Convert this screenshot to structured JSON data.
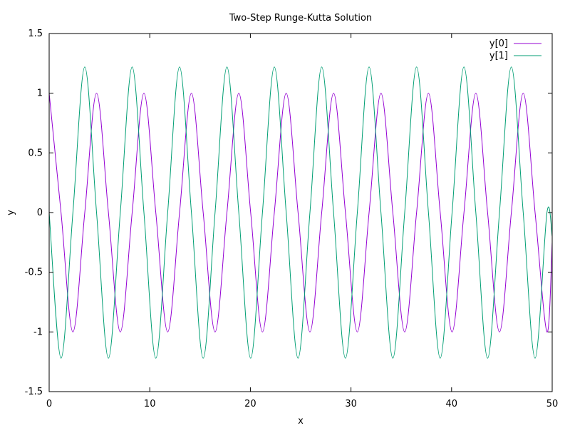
{
  "chart_data": {
    "type": "line",
    "title": "Two-Step Runge-Kutta Solution",
    "xlabel": "x",
    "ylabel": "y",
    "xlim": [
      0,
      50
    ],
    "ylim": [
      -1.5,
      1.5
    ],
    "x_ticks": [
      "0",
      "10",
      "20",
      "30",
      "40",
      "50"
    ],
    "y_ticks": [
      "1.5",
      "1",
      "0.5",
      "0",
      "-0.5",
      "-1",
      "-1.5"
    ],
    "grid": false,
    "legend_position": "top-right",
    "series": [
      {
        "name": "y[0]",
        "color": "#9400d3",
        "x": [
          0,
          1.18,
          2.36,
          3.54,
          4.71,
          5.89,
          7.07,
          8.25,
          9.42,
          10.6,
          11.78,
          12.96,
          14.14,
          15.31,
          16.49,
          17.67,
          18.85,
          20.03,
          21.2,
          22.38,
          23.56,
          24.74,
          25.92,
          27.09,
          28.27,
          29.45,
          30.63,
          31.8,
          32.98,
          34.16,
          35.34,
          36.52,
          37.7,
          38.87,
          40.05,
          41.23,
          42.41,
          43.58,
          44.76,
          45.94,
          47.12,
          48.3,
          49.48,
          50
        ],
        "y": [
          1.0,
          0.0,
          -1.0,
          0.0,
          1.0,
          0.0,
          -1.0,
          0.0,
          1.0,
          0.0,
          -1.0,
          0.0,
          1.0,
          0.0,
          -1.0,
          0.0,
          1.0,
          0.0,
          -1.0,
          0.0,
          1.0,
          0.0,
          -1.0,
          0.0,
          1.0,
          0.0,
          -1.0,
          0.0,
          1.0,
          0.0,
          -1.0,
          0.0,
          1.0,
          0.0,
          -1.0,
          0.0,
          1.0,
          0.0,
          -1.0,
          0.0,
          1.0,
          0.0,
          -1.0,
          -0.25
        ]
      },
      {
        "name": "y[1]",
        "color": "#009e73",
        "x": [
          0,
          1.18,
          2.36,
          3.54,
          4.71,
          5.89,
          7.07,
          8.25,
          9.42,
          10.6,
          11.78,
          12.96,
          14.14,
          15.31,
          16.49,
          17.67,
          18.85,
          20.03,
          21.2,
          22.38,
          23.56,
          24.74,
          25.92,
          27.09,
          28.27,
          29.45,
          30.63,
          31.8,
          32.98,
          34.16,
          35.34,
          36.52,
          37.7,
          38.87,
          40.05,
          41.23,
          42.41,
          43.58,
          44.76,
          45.94,
          47.12,
          48.3,
          49.48,
          50
        ],
        "y": [
          0.0,
          -1.22,
          0.0,
          1.22,
          0.0,
          -1.22,
          0.0,
          1.22,
          0.0,
          -1.22,
          0.0,
          1.22,
          0.0,
          -1.22,
          0.0,
          1.22,
          0.0,
          -1.22,
          0.0,
          1.22,
          0.0,
          -1.22,
          0.0,
          1.22,
          0.0,
          -1.22,
          0.0,
          1.22,
          0.0,
          -1.22,
          0.0,
          1.22,
          0.0,
          -1.22,
          0.0,
          1.22,
          0.0,
          -1.22,
          0.0,
          1.22,
          0.0,
          -1.22,
          0.0,
          -0.2
        ]
      }
    ]
  }
}
